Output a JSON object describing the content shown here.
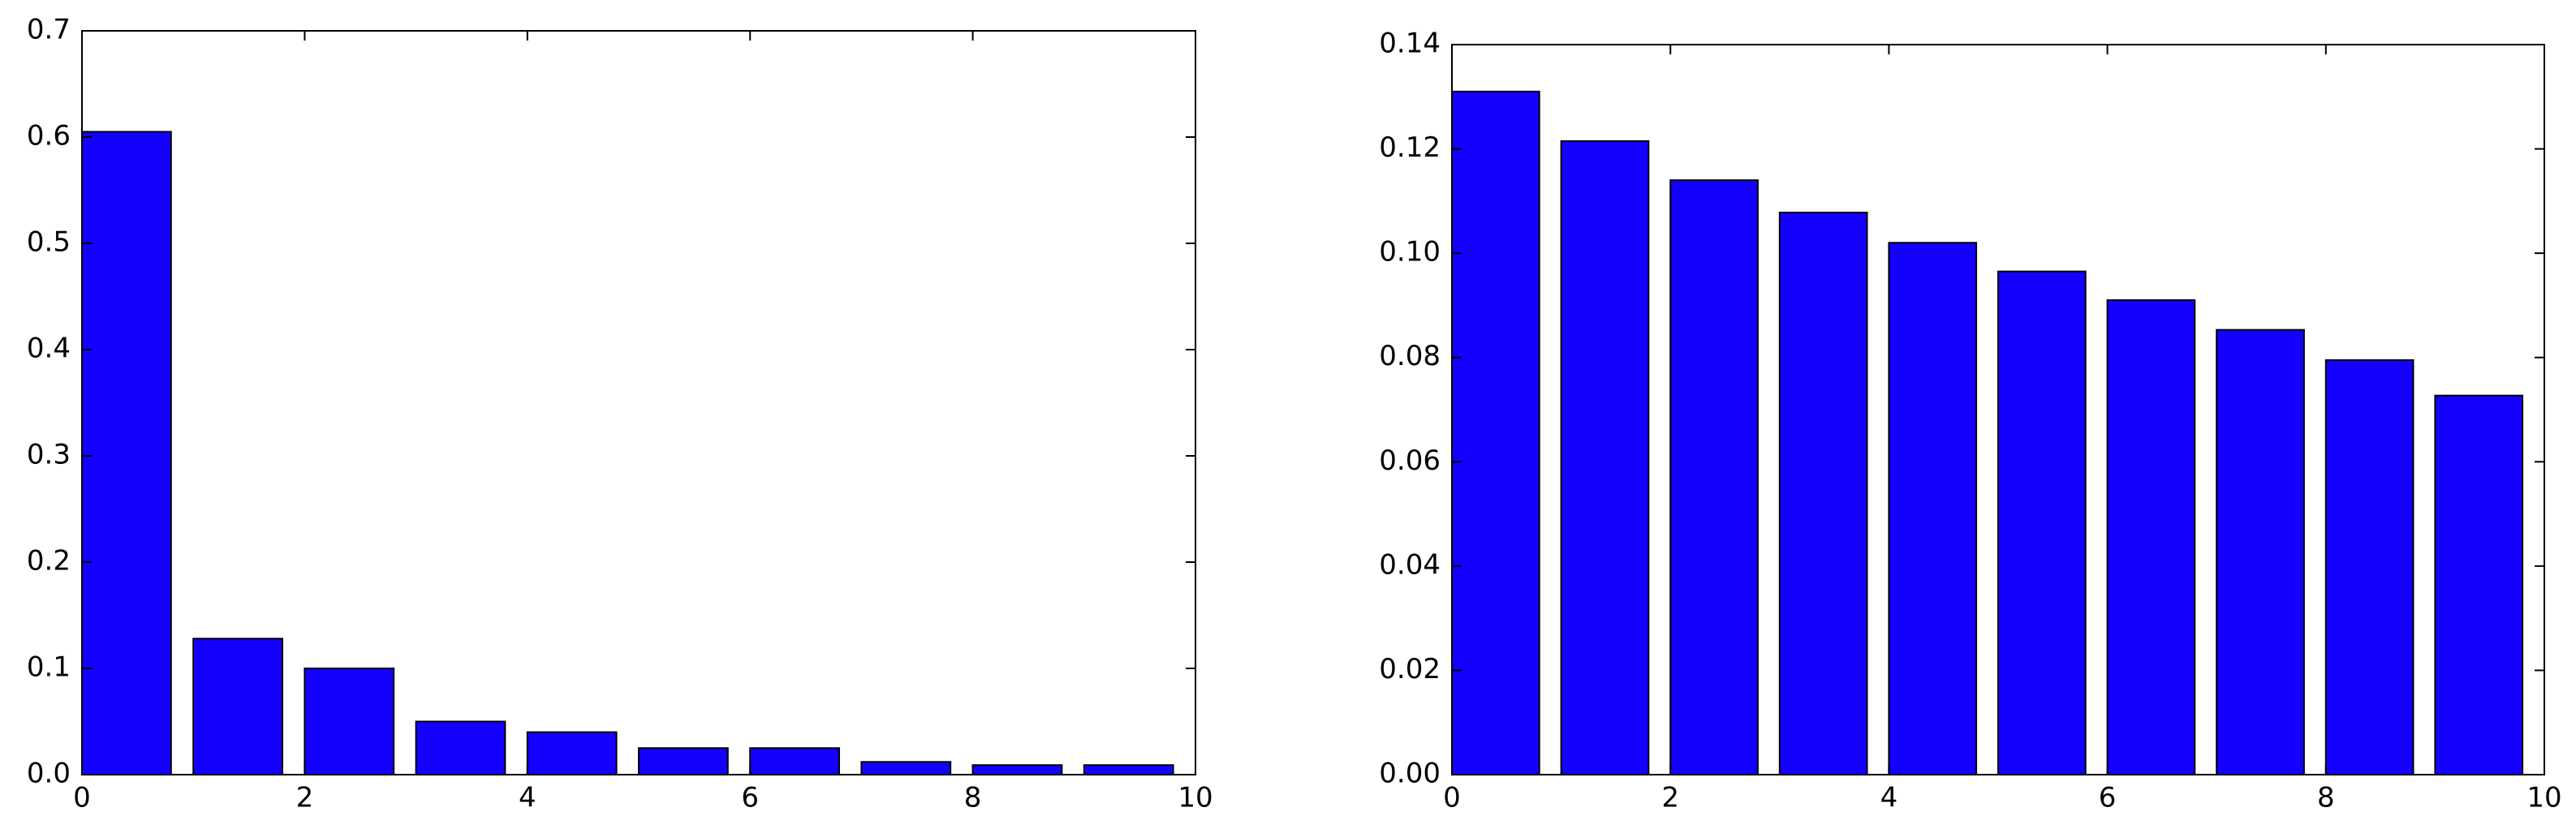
{
  "chart_data": [
    {
      "type": "bar",
      "x": [
        0,
        1,
        2,
        3,
        4,
        5,
        6,
        7,
        8,
        9
      ],
      "values": [
        0.605,
        0.128,
        0.1,
        0.05,
        0.04,
        0.025,
        0.025,
        0.012,
        0.009,
        0.009
      ],
      "color": "#1400ff",
      "xlim": [
        0,
        10
      ],
      "xticks": [
        0,
        2,
        4,
        6,
        8,
        10
      ],
      "ylim": [
        0,
        0.7
      ],
      "yticks": [
        {
          "value": 0,
          "label": "0.0"
        },
        0.1,
        0.2,
        0.3,
        0.4,
        0.5,
        0.6,
        0.7
      ],
      "grid": false
    },
    {
      "type": "bar",
      "x": [
        0,
        1,
        2,
        3,
        4,
        5,
        6,
        7,
        8,
        9
      ],
      "values": [
        0.131,
        0.1215,
        0.114,
        0.1078,
        0.102,
        0.0965,
        0.091,
        0.0853,
        0.0795,
        0.0727
      ],
      "color": "#1400ff",
      "xlim": [
        0,
        10
      ],
      "xticks": [
        0,
        2,
        4,
        6,
        8,
        10
      ],
      "ylim": [
        0,
        0.14
      ],
      "yticks": [
        {
          "value": 0,
          "label": "0.00"
        },
        0.02,
        0.04,
        0.06,
        0.08,
        {
          "value": 0.1,
          "label": "0.10"
        },
        0.12,
        0.14
      ],
      "grid": false
    }
  ]
}
